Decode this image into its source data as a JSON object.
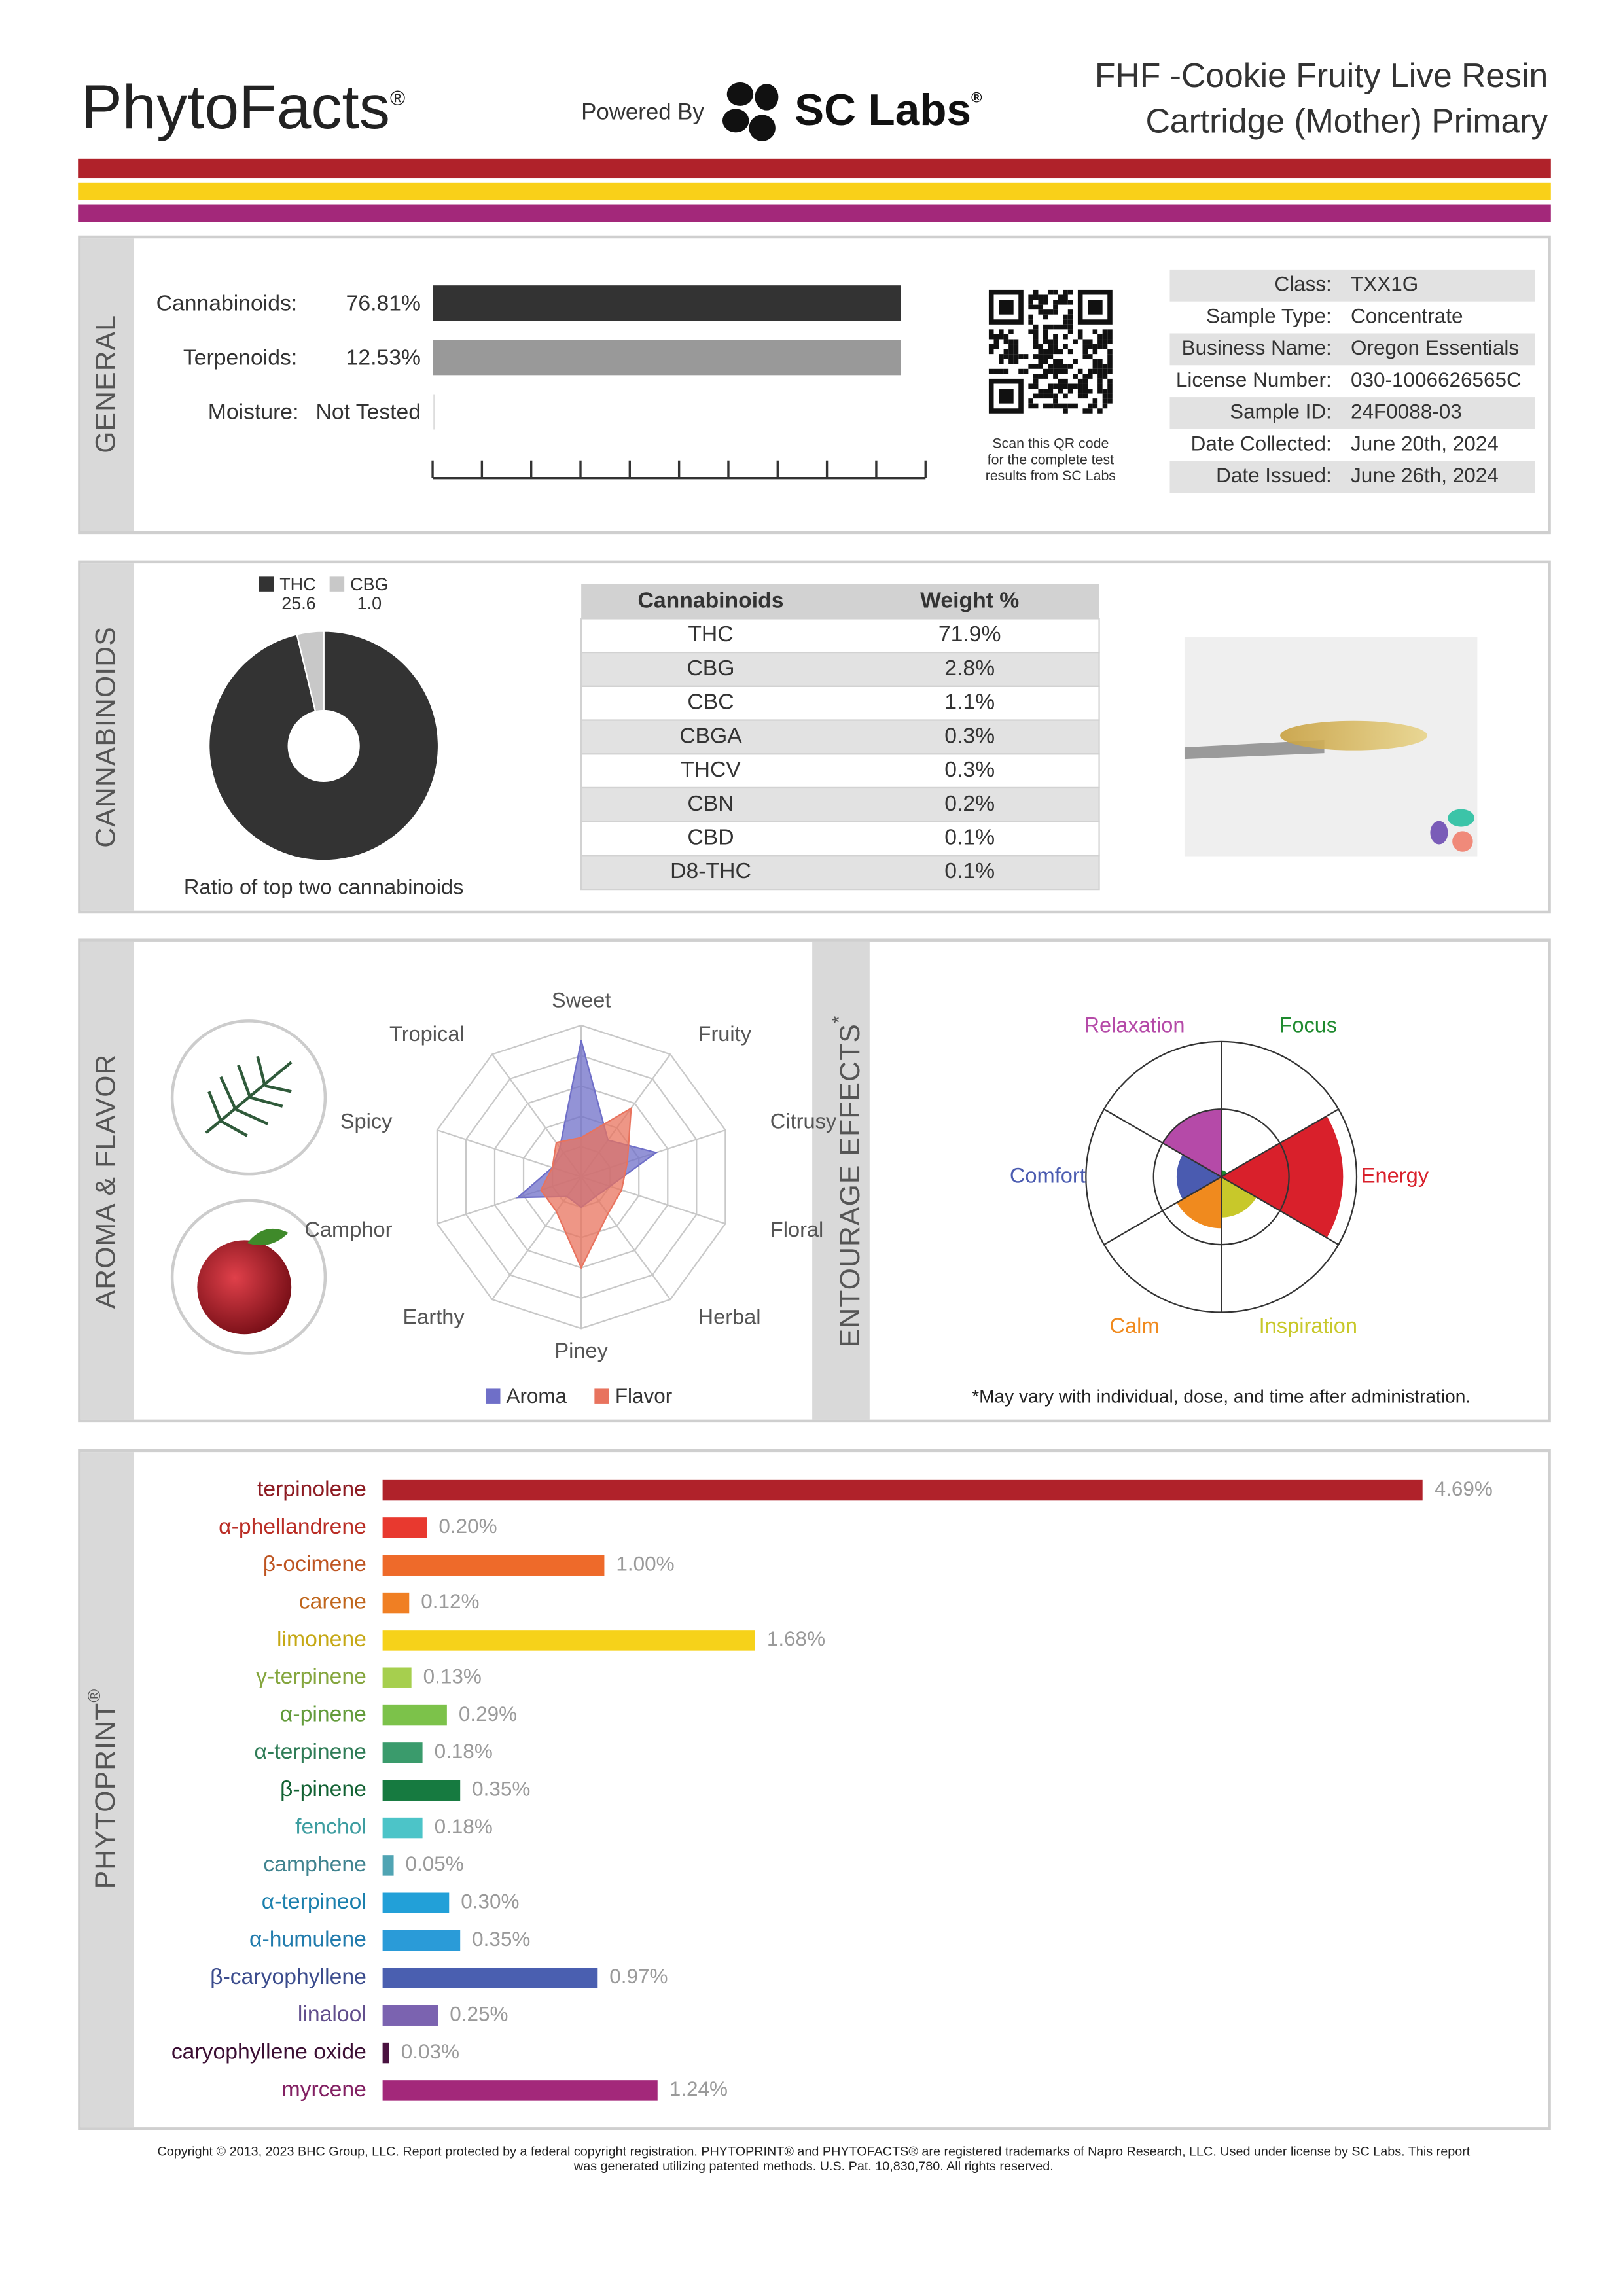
{
  "header": {
    "brand": "PhytoFacts",
    "brand_mark": "®",
    "powered_by": "Powered By",
    "lab": "SC Labs",
    "lab_mark": "®",
    "title_lines": [
      "FHF -Cookie Fruity Live Resin",
      "Cartridge (Mother) Primary"
    ]
  },
  "general": {
    "section_label": "GENERAL",
    "rows": [
      {
        "label": "Cannabinoids:",
        "value": "76.81%"
      },
      {
        "label": "Terpenoids:",
        "value": "12.53%"
      },
      {
        "label": "Moisture:",
        "value": "Not Tested"
      }
    ],
    "qr_caption": [
      "Scan this QR code",
      "for the complete test",
      "results from SC Labs"
    ],
    "info": [
      {
        "label": "Class:",
        "value": "TXX1G"
      },
      {
        "label": "Sample Type:",
        "value": "Concentrate"
      },
      {
        "label": "Business Name:",
        "value": "Oregon Essentials"
      },
      {
        "label": "License Number:",
        "value": "030-1006626565C"
      },
      {
        "label": "Sample ID:",
        "value": "24F0088-03"
      },
      {
        "label": "Date Collected:",
        "value": "June 20th, 2024"
      },
      {
        "label": "Date Issued:",
        "value": "June 26th, 2024"
      }
    ]
  },
  "cannabinoids": {
    "section_label": "CANNABINOIDS",
    "chart_data": {
      "type": "pie",
      "categories": [
        "THC",
        "CBG"
      ],
      "values": [
        25.6,
        1.0
      ],
      "value_labels": [
        "25.6",
        "1.0"
      ],
      "colors": [
        "#333333",
        "#c8c8c8"
      ],
      "caption": "Ratio of top two cannabinoids"
    },
    "table": {
      "header": [
        "Cannabinoids",
        "Weight %"
      ],
      "rows": [
        [
          "THC",
          "71.9%"
        ],
        [
          "CBG",
          "2.8%"
        ],
        [
          "CBC",
          "1.1%"
        ],
        [
          "CBGA",
          "0.3%"
        ],
        [
          "THCV",
          "0.3%"
        ],
        [
          "CBN",
          "0.2%"
        ],
        [
          "CBD",
          "0.1%"
        ],
        [
          "D8-THC",
          "0.1%"
        ]
      ]
    }
  },
  "aroma": {
    "section_label": "AROMA & FLAVOR",
    "chart_data": {
      "type": "radar",
      "categories": [
        "Sweet",
        "Fruity",
        "Citrusy",
        "Floral",
        "Herbal",
        "Piney",
        "Earthy",
        "Camphor",
        "Spicy",
        "Tropical"
      ],
      "series": [
        {
          "name": "Aroma",
          "color": "#6f6fc8",
          "values": [
            4.5,
            1.5,
            2.6,
            1.0,
            0.8,
            1.0,
            0.8,
            2.2,
            1.0,
            1.2
          ]
        },
        {
          "name": "Flavor",
          "color": "#e8735e",
          "values": [
            1.3,
            2.8,
            1.6,
            1.4,
            1.5,
            3.0,
            1.4,
            1.4,
            1.0,
            1.4
          ]
        }
      ],
      "rlim": [
        0,
        5
      ],
      "rticks": [
        1,
        2,
        3,
        4,
        5
      ]
    }
  },
  "effects": {
    "section_label": "ENTOURAGE EFFECTS",
    "section_mark": "*",
    "chart_data": {
      "type": "rose",
      "categories": [
        "Focus",
        "Energy",
        "Inspiration",
        "Calm",
        "Comfort",
        "Relaxation"
      ],
      "values": [
        0.05,
        0.9,
        0.3,
        0.38,
        0.33,
        0.5
      ],
      "colors": [
        "#1e8a2e",
        "#d9202b",
        "#c8c82a",
        "#f08a1e",
        "#4a5bb0",
        "#b54aa8"
      ],
      "rlim": [
        0,
        1
      ],
      "rticks": [
        0.5,
        1
      ]
    },
    "note": "*May vary with individual, dose, and time after administration."
  },
  "phytoprint": {
    "section_label": "PHYTOPRINT",
    "section_mark": "®",
    "chart_data": {
      "type": "bar",
      "orientation": "horizontal",
      "categories": [
        "terpinolene",
        "α-phellandrene",
        "β-ocimene",
        "carene",
        "limonene",
        "γ-terpinene",
        "α-pinene",
        "α-terpinene",
        "β-pinene",
        "fenchol",
        "camphene",
        "α-terpineol",
        "α-humulene",
        "β-caryophyllene",
        "linalool",
        "caryophyllene oxide",
        "myrcene"
      ],
      "values": [
        4.69,
        0.2,
        1.0,
        0.12,
        1.68,
        0.13,
        0.29,
        0.18,
        0.35,
        0.18,
        0.05,
        0.3,
        0.35,
        0.97,
        0.25,
        0.03,
        1.24
      ],
      "value_labels": [
        "4.69%",
        "0.20%",
        "1.00%",
        "0.12%",
        "1.68%",
        "0.13%",
        "0.29%",
        "0.18%",
        "0.35%",
        "0.18%",
        "0.05%",
        "0.30%",
        "0.35%",
        "0.97%",
        "0.25%",
        "0.03%",
        "1.24%"
      ],
      "colors": [
        "#b0222a",
        "#e8392f",
        "#ee6a2a",
        "#f07f23",
        "#f6d21a",
        "#a6cf4e",
        "#7cc24a",
        "#3a9b6c",
        "#167a40",
        "#4cc4c8",
        "#50a4b3",
        "#22a0d8",
        "#2a9bd8",
        "#4a5fb0",
        "#7b63b0",
        "#4a1240",
        "#a3287a"
      ],
      "xlim": [
        0,
        5
      ]
    }
  },
  "footer": {
    "copyright": [
      "Copyright © 2013, 2023 BHC Group, LLC. Report protected by a federal copyright registration. PHYTOPRINT® and PHYTOFACTS® are registered trademarks of Napro Research, LLC. Used under license by SC Labs. This report",
      "was generated utilizing patented methods. U.S. Pat. 10,830,780. All rights reserved."
    ]
  }
}
